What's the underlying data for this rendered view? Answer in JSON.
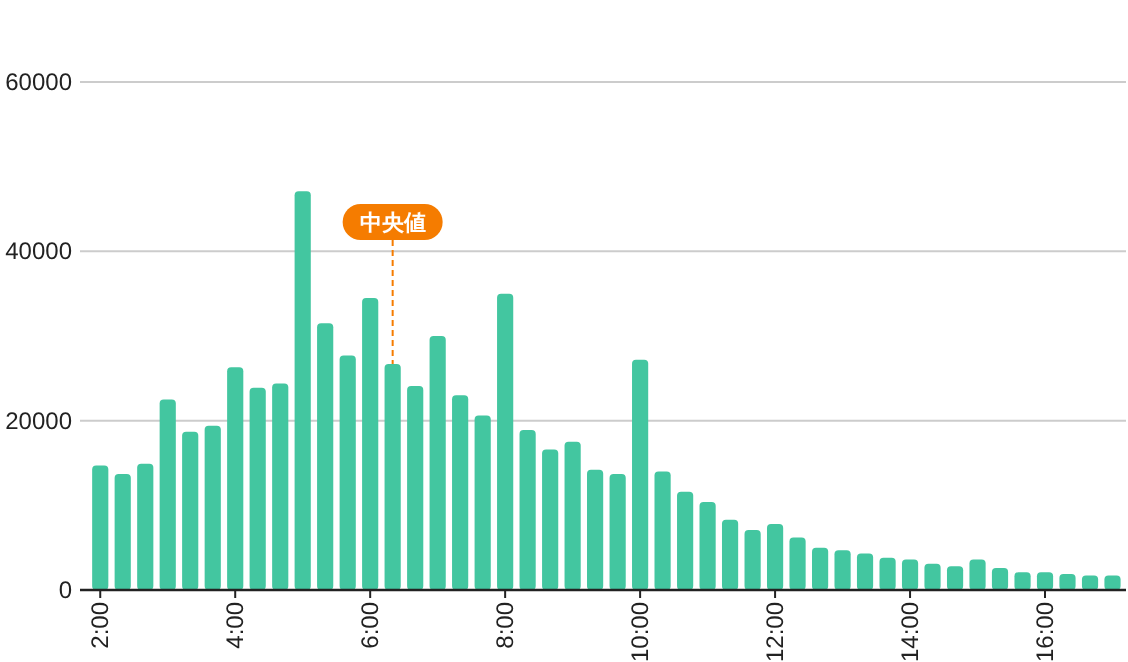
{
  "chart_data": {
    "type": "bar",
    "x": [
      2,
      2.333,
      2.667,
      3,
      3.333,
      3.667,
      4,
      4.333,
      4.667,
      5,
      5.333,
      5.667,
      6,
      6.333,
      6.667,
      7,
      7.333,
      7.667,
      8,
      8.333,
      8.667,
      9,
      9.333,
      9.667,
      10,
      10.333,
      10.667,
      11,
      11.333,
      11.667,
      12,
      12.333,
      12.667,
      13,
      13.333,
      13.667,
      14,
      14.333,
      14.667,
      15,
      15.333,
      15.667,
      16,
      16.333,
      16.667,
      17
    ],
    "values": [
      14700,
      13700,
      14900,
      22500,
      18700,
      19400,
      26300,
      23900,
      24400,
      47100,
      31500,
      27700,
      34500,
      26700,
      24100,
      30000,
      23000,
      20600,
      35000,
      18900,
      16600,
      17500,
      14200,
      13700,
      27200,
      14000,
      11600,
      10400,
      8300,
      7100,
      7800,
      6200,
      5000,
      4700,
      4300,
      3800,
      3600,
      3100,
      2800,
      3600,
      2600,
      2100,
      2100,
      1900,
      1700,
      1700
    ],
    "color": "#43c6a0",
    "xlim": [
      1.7,
      17.2
    ],
    "xticks": [
      {
        "value": 2,
        "label": "2:00"
      },
      {
        "value": 4,
        "label": "4:00"
      },
      {
        "value": 6,
        "label": "6:00"
      },
      {
        "value": 8,
        "label": "8:00"
      },
      {
        "value": 10,
        "label": "10:00"
      },
      {
        "value": 12,
        "label": "12:00"
      },
      {
        "value": 14,
        "label": "14:00"
      },
      {
        "value": 16,
        "label": "16:00"
      }
    ],
    "ylim": [
      0,
      60000
    ],
    "yticks": [
      0,
      20000,
      40000,
      60000
    ],
    "grid": "y",
    "annotations": [
      {
        "text": "中央値",
        "x": 6.333,
        "y": 26700
      }
    ]
  }
}
